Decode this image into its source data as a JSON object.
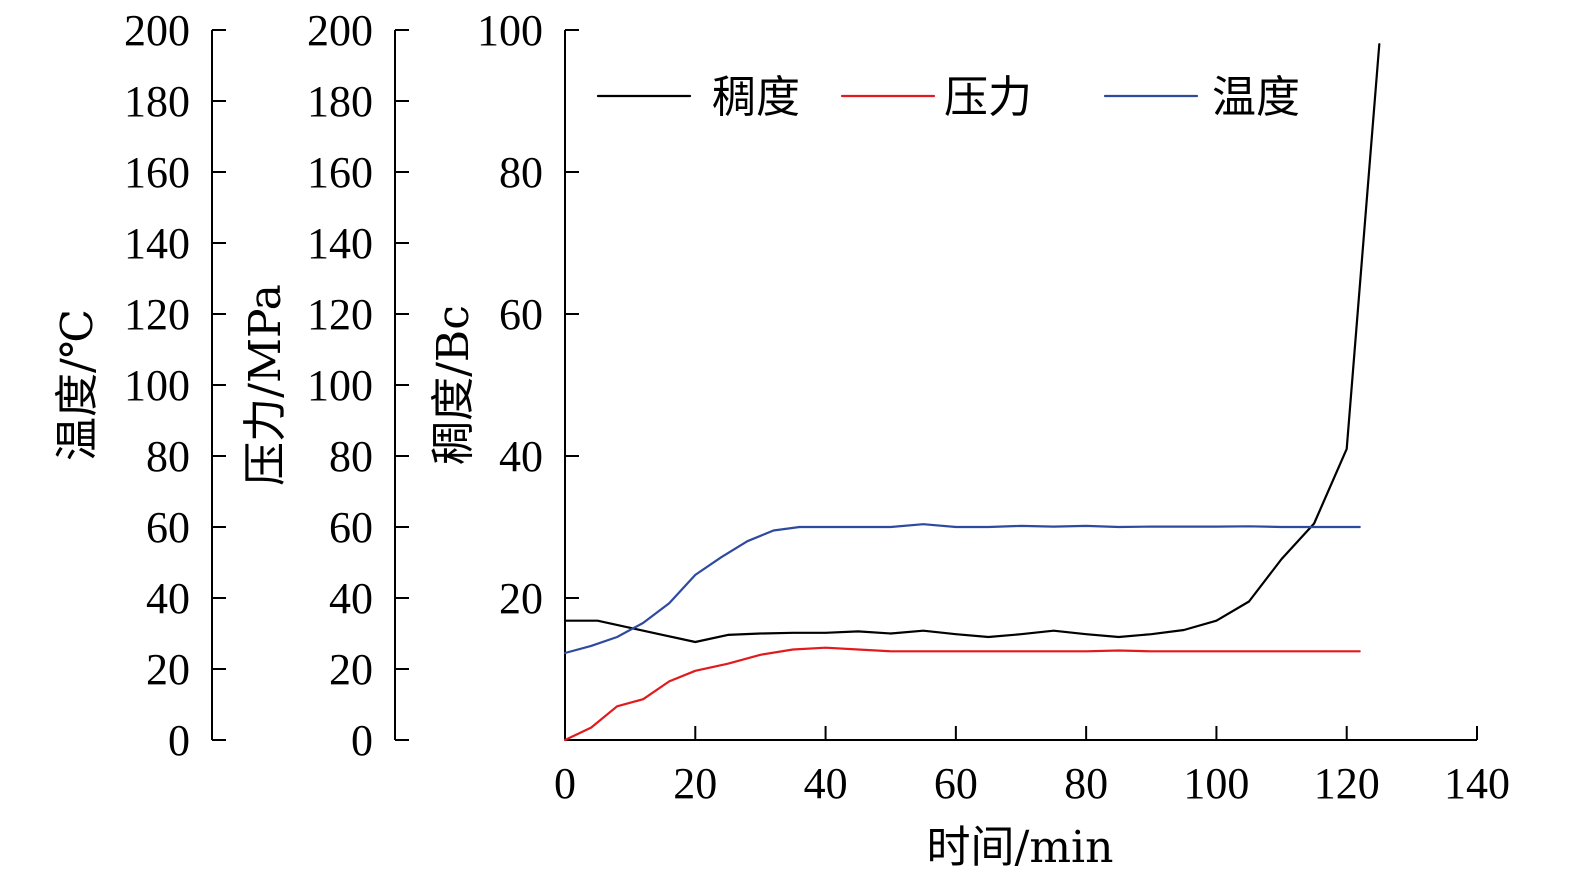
{
  "chart_data": {
    "type": "line",
    "x_axis": {
      "label": "时间/min",
      "range": [
        0,
        140
      ],
      "ticks": [
        0,
        20,
        40,
        60,
        80,
        100,
        120,
        140
      ],
      "tick_labels": [
        "0",
        "20",
        "40",
        "60",
        "80",
        "100",
        "120",
        "140"
      ]
    },
    "y_axes": [
      {
        "id": "consistency",
        "label": "稠度/Bc",
        "range": [
          0,
          100
        ],
        "ticks": [
          0,
          20,
          40,
          60,
          80,
          100
        ],
        "tick_labels": [
          "",
          "20",
          "40",
          "60",
          "80",
          "100"
        ]
      },
      {
        "id": "pressure",
        "label": "压力/MPa",
        "range": [
          0,
          200
        ],
        "ticks": [
          0,
          20,
          40,
          60,
          80,
          100,
          120,
          140,
          160,
          180,
          200
        ],
        "tick_labels": [
          "0",
          "20",
          "40",
          "60",
          "80",
          "100",
          "120",
          "140",
          "160",
          "180",
          "200"
        ]
      },
      {
        "id": "temperature",
        "label": "温度/℃",
        "range": [
          0,
          200
        ],
        "ticks": [
          0,
          20,
          40,
          60,
          80,
          100,
          120,
          140,
          160,
          180,
          200
        ],
        "tick_labels": [
          "0",
          "20",
          "40",
          "60",
          "80",
          "100",
          "120",
          "140",
          "160",
          "180",
          "200"
        ]
      }
    ],
    "legend": {
      "placement": "top",
      "entries": [
        "稠度",
        "压力",
        "温度"
      ]
    },
    "series": [
      {
        "name": "稠度",
        "axis": "consistency",
        "color": "#000000",
        "x": [
          0,
          5,
          10,
          15,
          20,
          25,
          30,
          35,
          40,
          45,
          50,
          55,
          60,
          65,
          70,
          75,
          80,
          85,
          90,
          95,
          100,
          105,
          110,
          115,
          120,
          125
        ],
        "y": [
          16.8,
          16.8,
          15.8,
          14.8,
          13.8,
          14.8,
          15.0,
          15.1,
          15.1,
          15.3,
          15.0,
          15.4,
          14.9,
          14.5,
          14.9,
          15.4,
          14.9,
          14.5,
          14.9,
          15.5,
          16.8,
          19.5,
          25.5,
          30.5,
          41.0,
          98.0
        ]
      },
      {
        "name": "压力",
        "axis": "pressure",
        "color": "#e31a1c",
        "x": [
          0,
          4,
          8,
          12,
          16,
          20,
          25,
          30,
          35,
          40,
          45,
          50,
          55,
          60,
          65,
          70,
          75,
          80,
          85,
          90,
          95,
          100,
          105,
          110,
          115,
          122
        ],
        "y": [
          0,
          3.5,
          9.5,
          11.5,
          16.5,
          19.5,
          21.5,
          24.0,
          25.5,
          26.0,
          25.5,
          25.0,
          25.0,
          25.0,
          25.0,
          25.0,
          25.0,
          25.0,
          25.2,
          25.0,
          25.0,
          25.0,
          25.0,
          25.0,
          25.0,
          25.0
        ]
      },
      {
        "name": "温度",
        "axis": "temperature",
        "color": "#2e4a9e",
        "x": [
          0,
          4,
          8,
          12,
          16,
          20,
          24,
          28,
          32,
          36,
          40,
          45,
          50,
          55,
          60,
          65,
          70,
          75,
          80,
          85,
          90,
          95,
          100,
          105,
          110,
          115,
          122
        ],
        "y": [
          24.5,
          26.5,
          29.0,
          33.0,
          38.5,
          46.5,
          51.5,
          56.0,
          59.0,
          60.0,
          60.0,
          60.0,
          60.0,
          60.8,
          60.0,
          60.0,
          60.3,
          60.1,
          60.3,
          60.0,
          60.1,
          60.1,
          60.1,
          60.2,
          60.0,
          60.0,
          60.0
        ]
      }
    ]
  }
}
